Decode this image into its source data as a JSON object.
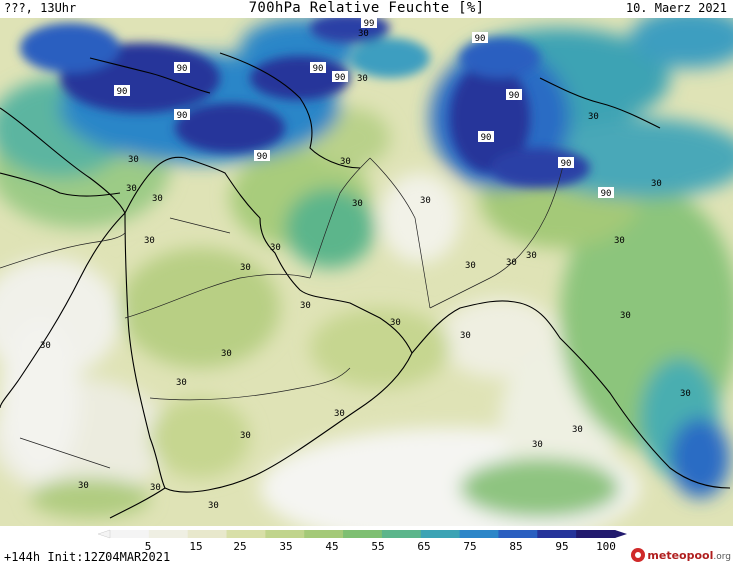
{
  "header": {
    "left": "???, 13Uhr",
    "title": "700hPa Relative Feuchte [%]",
    "date": "10. Maerz 2021"
  },
  "footer": {
    "init": "+144h Init:12Z04MAR2021",
    "logo_brand": "meteopool",
    "logo_tld": ".org"
  },
  "legend": {
    "ticks": [
      "5",
      "15",
      "25",
      "35",
      "45",
      "55",
      "65",
      "75",
      "85",
      "95",
      "100"
    ],
    "colors": [
      "#f4f4f4",
      "#efefe3",
      "#e8e8cc",
      "#d8dfa8",
      "#c0d48c",
      "#a4c978",
      "#7ebf72",
      "#5cb58b",
      "#3ca3b4",
      "#2c86c8",
      "#2a5fc0",
      "#26349a",
      "#221a6e"
    ]
  },
  "contour_labels": {
    "high": [
      "99",
      "90",
      "90",
      "90",
      "90",
      "90",
      "90",
      "90",
      "90",
      "90",
      "90",
      "90"
    ],
    "mid": [
      "30",
      "30",
      "30",
      "30",
      "30",
      "30",
      "30",
      "30",
      "30",
      "30",
      "30",
      "30",
      "30",
      "30",
      "30",
      "30",
      "30",
      "30",
      "30",
      "30",
      "30",
      "30",
      "30",
      "30",
      "30",
      "30",
      "30",
      "30",
      "30",
      "30",
      "30",
      "30"
    ]
  }
}
